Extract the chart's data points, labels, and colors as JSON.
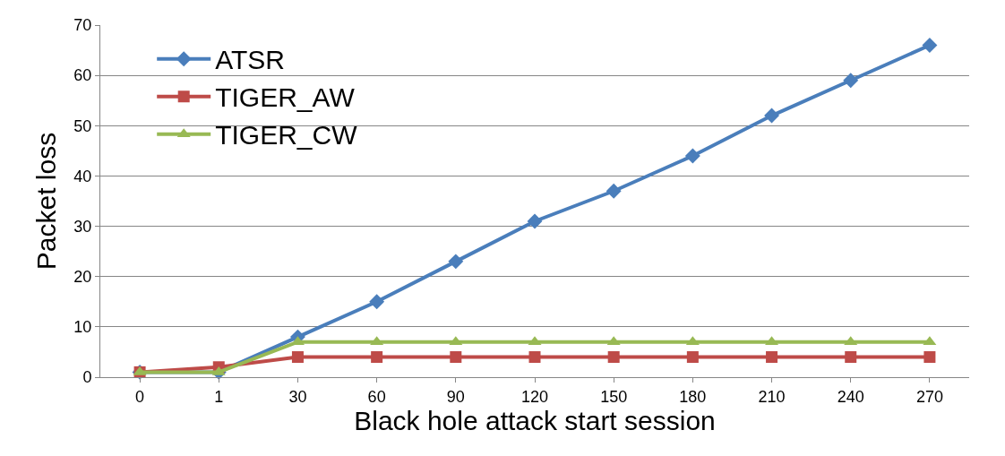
{
  "chart_data": {
    "type": "line",
    "xlabel": "Black hole attack start session",
    "ylabel": "Packet loss",
    "categories": [
      "0",
      "1",
      "30",
      "60",
      "90",
      "120",
      "150",
      "180",
      "210",
      "240",
      "270"
    ],
    "series": [
      {
        "name": "ATSR",
        "color": "#4a7ebb",
        "marker": "diamond",
        "values": [
          1,
          1,
          8,
          15,
          23,
          31,
          37,
          44,
          52,
          59,
          66
        ]
      },
      {
        "name": "TIGER_AW",
        "color": "#be4b48",
        "marker": "square",
        "values": [
          1,
          2,
          4,
          4,
          4,
          4,
          4,
          4,
          4,
          4,
          4
        ]
      },
      {
        "name": "TIGER_CW",
        "color": "#98b954",
        "marker": "triangle",
        "values": [
          1,
          1,
          7,
          7,
          7,
          7,
          7,
          7,
          7,
          7,
          7
        ]
      }
    ],
    "ylim": [
      0,
      70
    ],
    "yticks": [
      0,
      10,
      20,
      30,
      40,
      50,
      60,
      70
    ],
    "grid": "y",
    "legend": "top left",
    "line_style": "solid"
  }
}
